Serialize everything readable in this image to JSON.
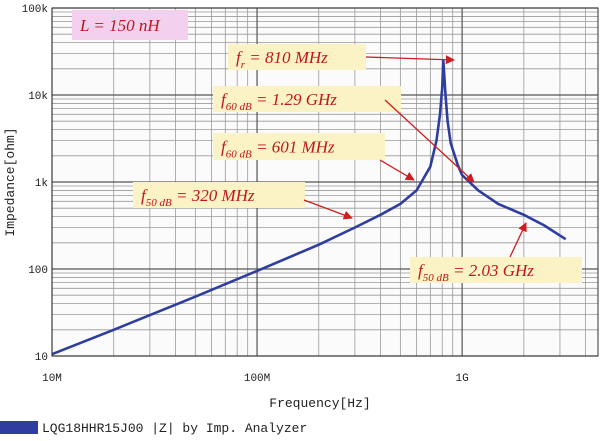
{
  "chart_data": {
    "type": "line",
    "x_label": "Frequency[Hz]",
    "y_label": "Impedance[ohm]",
    "x_log": true,
    "y_log": true,
    "grid": true,
    "minor_grid": true,
    "xlim": [
      10000000,
      4600000000
    ],
    "ylim": [
      10,
      100000
    ],
    "xticks": [
      {
        "value": 10000000,
        "label": "10M"
      },
      {
        "value": 100000000,
        "label": "100M"
      },
      {
        "value": 1000000000,
        "label": "1G"
      }
    ],
    "yticks": [
      10,
      100,
      {
        "value": 1000,
        "label": "1k"
      },
      {
        "value": 10000,
        "label": "10k"
      },
      {
        "value": 100000,
        "label": "100k"
      }
    ],
    "series": [
      {
        "name": "LQG18HHR15J00 |Z| by Imp. Analyzer",
        "color": "#2e3d9f",
        "x": [
          10000000,
          20000000,
          50000000,
          100000000,
          200000000,
          300000000,
          400000000,
          500000000,
          600000000,
          700000000,
          750000000,
          780000000,
          800000000,
          810000000,
          820000000,
          830000000,
          850000000,
          880000000,
          950000000,
          1000000000,
          1200000000,
          1500000000,
          2000000000,
          2500000000,
          3200000000
        ],
        "values": [
          10.5,
          20,
          48,
          95,
          190,
          300,
          420,
          560,
          800,
          1500,
          3000,
          6000,
          12000,
          25000,
          16000,
          10000,
          5000,
          2800,
          1600,
          1200,
          800,
          560,
          420,
          320,
          220
        ]
      }
    ],
    "annotations": [
      {
        "text": "L = 150 nH"
      },
      {
        "symbol": "f",
        "subscript": "r",
        "text": " = 810 MHz"
      },
      {
        "symbol": "f",
        "subscript": "60 dB",
        "text": " = 1.29 GHz"
      },
      {
        "symbol": "f",
        "subscript": "60 dB",
        "text": " = 601 MHz"
      },
      {
        "symbol": "f",
        "subscript": "50 dB",
        "text": " = 320 MHz"
      },
      {
        "symbol": "f",
        "subscript": "50 dB",
        "text": " = 2.03 GHz"
      }
    ]
  }
}
